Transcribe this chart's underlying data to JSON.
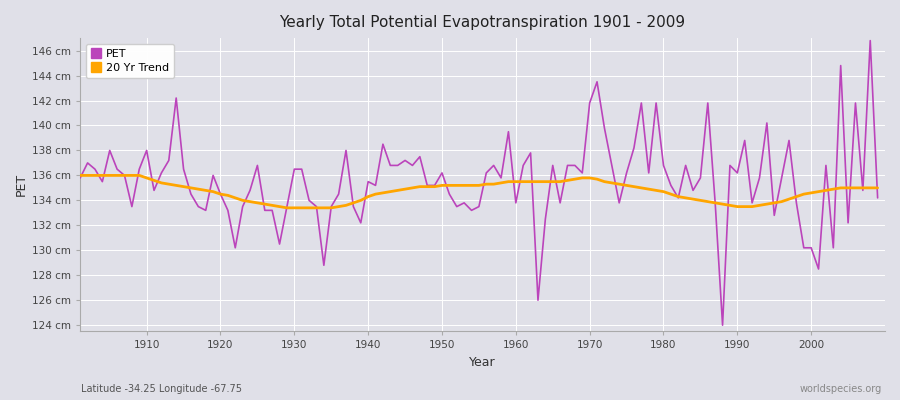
{
  "title": "Yearly Total Potential Evapotranspiration 1901 - 2009",
  "xlabel": "Year",
  "ylabel": "PET",
  "subtitle_left": "Latitude -34.25 Longitude -67.75",
  "subtitle_right": "worldspecies.org",
  "bg_color": "#e0e0e8",
  "pet_color": "#bb44bb",
  "trend_color": "#ffa500",
  "ylim": [
    123.5,
    147.0
  ],
  "yticks": [
    124,
    126,
    128,
    130,
    132,
    134,
    136,
    138,
    140,
    142,
    144,
    146
  ],
  "xticks": [
    1910,
    1920,
    1930,
    1940,
    1950,
    1960,
    1970,
    1980,
    1990,
    2000
  ],
  "years": [
    1901,
    1902,
    1903,
    1904,
    1905,
    1906,
    1907,
    1908,
    1909,
    1910,
    1911,
    1912,
    1913,
    1914,
    1915,
    1916,
    1917,
    1918,
    1919,
    1920,
    1921,
    1922,
    1923,
    1924,
    1925,
    1926,
    1927,
    1928,
    1929,
    1930,
    1931,
    1932,
    1933,
    1934,
    1935,
    1936,
    1937,
    1938,
    1939,
    1940,
    1941,
    1942,
    1943,
    1944,
    1945,
    1946,
    1947,
    1948,
    1949,
    1950,
    1951,
    1952,
    1953,
    1954,
    1955,
    1956,
    1957,
    1958,
    1959,
    1960,
    1961,
    1962,
    1963,
    1964,
    1965,
    1966,
    1967,
    1968,
    1969,
    1970,
    1971,
    1972,
    1973,
    1974,
    1975,
    1976,
    1977,
    1978,
    1979,
    1980,
    1981,
    1982,
    1983,
    1984,
    1985,
    1986,
    1987,
    1988,
    1989,
    1990,
    1991,
    1992,
    1993,
    1994,
    1995,
    1996,
    1997,
    1998,
    1999,
    2000,
    2001,
    2002,
    2003,
    2004,
    2005,
    2006,
    2007,
    2008,
    2009
  ],
  "pet_values": [
    135.8,
    137.0,
    136.5,
    135.5,
    138.0,
    136.5,
    136.0,
    133.5,
    136.5,
    138.0,
    134.8,
    136.2,
    137.2,
    142.2,
    136.5,
    134.5,
    133.5,
    133.2,
    136.0,
    134.5,
    133.2,
    130.2,
    133.5,
    134.8,
    136.8,
    133.2,
    133.2,
    130.5,
    133.5,
    136.5,
    136.5,
    134.0,
    133.5,
    128.8,
    133.5,
    134.5,
    138.0,
    133.5,
    132.2,
    135.5,
    135.2,
    138.5,
    136.8,
    136.8,
    137.2,
    136.8,
    137.5,
    135.2,
    135.2,
    136.2,
    134.5,
    133.5,
    133.8,
    133.2,
    133.5,
    136.2,
    136.8,
    135.8,
    139.5,
    133.8,
    136.8,
    137.8,
    126.0,
    132.5,
    136.8,
    133.8,
    136.8,
    136.8,
    136.2,
    141.8,
    143.5,
    139.8,
    136.8,
    133.8,
    136.2,
    138.2,
    141.8,
    136.2,
    141.8,
    136.8,
    135.2,
    134.2,
    136.8,
    134.8,
    135.8,
    141.8,
    133.8,
    124.0,
    136.8,
    136.2,
    138.8,
    133.8,
    135.8,
    140.2,
    132.8,
    135.8,
    138.8,
    133.8,
    130.2,
    130.2,
    128.5,
    136.8,
    130.2,
    144.8,
    132.2,
    141.8,
    134.8,
    146.8,
    134.2
  ],
  "trend_values": [
    136.0,
    136.0,
    136.0,
    136.0,
    136.0,
    136.0,
    136.0,
    136.0,
    136.0,
    135.8,
    135.6,
    135.4,
    135.3,
    135.2,
    135.1,
    135.0,
    134.9,
    134.8,
    134.7,
    134.5,
    134.4,
    134.2,
    134.0,
    133.9,
    133.8,
    133.7,
    133.6,
    133.5,
    133.4,
    133.4,
    133.4,
    133.4,
    133.4,
    133.4,
    133.4,
    133.5,
    133.6,
    133.8,
    134.0,
    134.3,
    134.5,
    134.6,
    134.7,
    134.8,
    134.9,
    135.0,
    135.1,
    135.1,
    135.1,
    135.2,
    135.2,
    135.2,
    135.2,
    135.2,
    135.2,
    135.3,
    135.3,
    135.4,
    135.5,
    135.5,
    135.5,
    135.5,
    135.5,
    135.5,
    135.5,
    135.5,
    135.6,
    135.7,
    135.8,
    135.8,
    135.7,
    135.5,
    135.4,
    135.3,
    135.2,
    135.1,
    135.0,
    134.9,
    134.8,
    134.7,
    134.5,
    134.3,
    134.2,
    134.1,
    134.0,
    133.9,
    133.8,
    133.7,
    133.6,
    133.5,
    133.5,
    133.5,
    133.6,
    133.7,
    133.8,
    133.9,
    134.1,
    134.3,
    134.5,
    134.6,
    134.7,
    134.8,
    134.9,
    135.0,
    135.0,
    135.0,
    135.0,
    135.0,
    135.0
  ]
}
